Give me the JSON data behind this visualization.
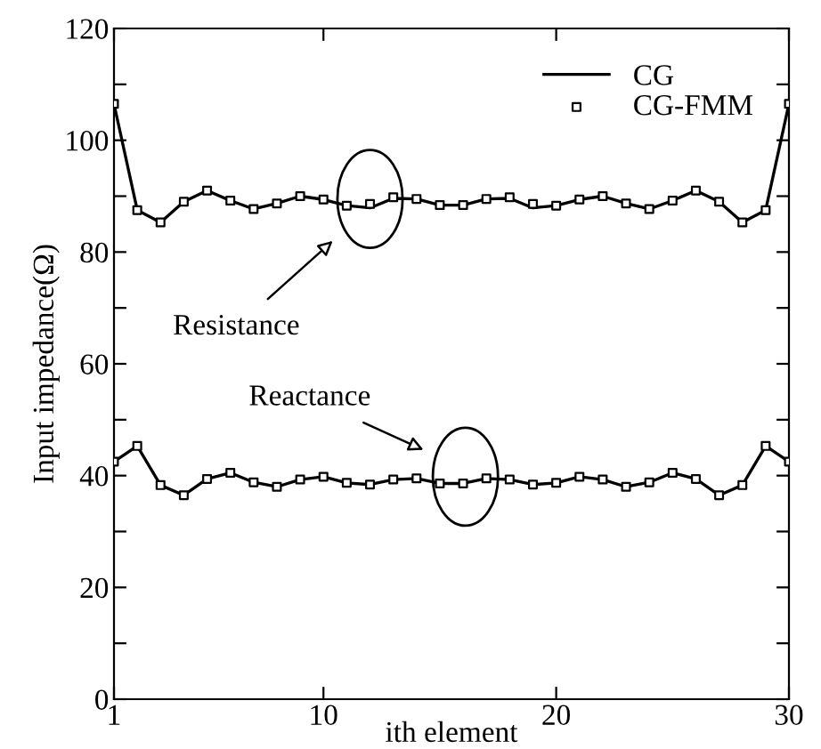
{
  "chart_data": {
    "type": "line",
    "xlabel": "ith element",
    "ylabel": "Input impedance(Ω)",
    "x": [
      1,
      2,
      3,
      4,
      5,
      6,
      7,
      8,
      9,
      10,
      11,
      12,
      13,
      14,
      15,
      16,
      17,
      18,
      19,
      20,
      21,
      22,
      23,
      24,
      25,
      26,
      27,
      28,
      29,
      30
    ],
    "series": [
      {
        "name": "CG",
        "color": "#000000",
        "values": [
          106.5,
          87.5,
          85.3,
          89,
          91,
          89.2,
          87.7,
          88.7,
          90,
          89.4,
          88.3,
          87.9,
          89.6,
          89.5,
          88.4,
          88.4,
          89.5,
          89.6,
          87.9,
          88.3,
          89.4,
          90,
          88.7,
          87.7,
          89.2,
          91,
          89,
          85.3,
          87.5,
          106.5
        ]
      },
      {
        "color": "#000000",
        "values": [
          42.5,
          45.3,
          38.3,
          36.5,
          39.4,
          40.5,
          38.8,
          38,
          39.3,
          39.8,
          38.7,
          38.4,
          39.3,
          39.5,
          38.6,
          38.6,
          39.5,
          39.3,
          38.4,
          38.7,
          39.8,
          39.3,
          38,
          38.8,
          40.5,
          39.4,
          36.5,
          38.3,
          45.3,
          42.5
        ]
      },
      {
        "name": "CG-FMM",
        "type": "scatter",
        "marker": "square",
        "color": "#000000",
        "values": [
          106.5,
          87.5,
          85.3,
          89,
          91,
          89.2,
          87.7,
          88.7,
          90,
          89.4,
          88.3,
          88.6,
          89.8,
          89.5,
          88.4,
          88.4,
          89.5,
          89.8,
          88.6,
          88.3,
          89.4,
          90,
          88.7,
          87.7,
          89.2,
          91,
          89,
          85.3,
          87.5,
          106.5
        ]
      },
      {
        "type": "scatter",
        "marker": "square",
        "color": "#000000",
        "values": [
          42.5,
          45.3,
          38.3,
          36.5,
          39.4,
          40.5,
          38.8,
          38,
          39.3,
          39.8,
          38.7,
          38.4,
          39.3,
          39.5,
          38.6,
          38.6,
          39.5,
          39.3,
          38.4,
          38.7,
          39.8,
          39.3,
          38,
          38.8,
          40.5,
          39.4,
          36.5,
          38.3,
          45.3,
          42.5
        ]
      }
    ],
    "xlim": [
      1,
      30
    ],
    "xticks": [
      1,
      10,
      20,
      30
    ],
    "ylim": [
      0,
      120
    ],
    "yticks": [
      0,
      {
        "value": 10,
        "label": null
      },
      20,
      {
        "value": 30,
        "label": null
      },
      40,
      {
        "value": 50,
        "label": null
      },
      60,
      {
        "value": 70,
        "label": null
      },
      80,
      {
        "value": 90,
        "label": null
      },
      100,
      {
        "value": 110,
        "label": null
      },
      120
    ],
    "annotations": [
      "Resistance",
      "Reactance"
    ],
    "grid": false,
    "legend": "top right"
  }
}
